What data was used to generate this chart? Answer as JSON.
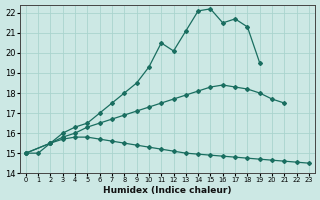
{
  "xlabel": "Humidex (Indice chaleur)",
  "xlim": [
    -0.5,
    23.5
  ],
  "ylim": [
    14,
    22.4
  ],
  "xticks": [
    0,
    1,
    2,
    3,
    4,
    5,
    6,
    7,
    8,
    9,
    10,
    11,
    12,
    13,
    14,
    15,
    16,
    17,
    18,
    19,
    20,
    21,
    22,
    23
  ],
  "yticks": [
    14,
    15,
    16,
    17,
    18,
    19,
    20,
    21,
    22
  ],
  "bg_color": "#cce8e4",
  "grid_color": "#aad4ce",
  "line_color": "#1a6e60",
  "line1_x": [
    0,
    1,
    2,
    3,
    4,
    5,
    6,
    7,
    8,
    9,
    10,
    11,
    12,
    13,
    14,
    15,
    16,
    17,
    18,
    19
  ],
  "line1_y": [
    15.0,
    15.0,
    15.5,
    16.0,
    16.3,
    16.5,
    17.0,
    17.5,
    18.0,
    18.5,
    19.3,
    20.5,
    20.1,
    21.1,
    22.1,
    22.2,
    21.5,
    21.7,
    21.3,
    19.5
  ],
  "line2_x": [
    0,
    2,
    3,
    4,
    5,
    6,
    7,
    8,
    9,
    10,
    11,
    12,
    13,
    14,
    15,
    16,
    17,
    18,
    19,
    20,
    21
  ],
  "line2_y": [
    15.0,
    15.5,
    15.8,
    16.0,
    16.3,
    16.5,
    16.7,
    16.9,
    17.1,
    17.3,
    17.5,
    17.7,
    17.9,
    18.1,
    18.3,
    18.4,
    18.3,
    18.2,
    18.0,
    17.7,
    17.5
  ],
  "line3_x": [
    0,
    2,
    3,
    4,
    5,
    6,
    7,
    8,
    9,
    10,
    11,
    12,
    13,
    14,
    15,
    16,
    17,
    18,
    19,
    20,
    21,
    22,
    23
  ],
  "line3_y": [
    15.0,
    15.5,
    15.7,
    15.8,
    15.8,
    15.7,
    15.6,
    15.5,
    15.4,
    15.3,
    15.2,
    15.1,
    15.0,
    14.95,
    14.9,
    14.85,
    14.8,
    14.75,
    14.7,
    14.65,
    14.6,
    14.55,
    14.5
  ]
}
